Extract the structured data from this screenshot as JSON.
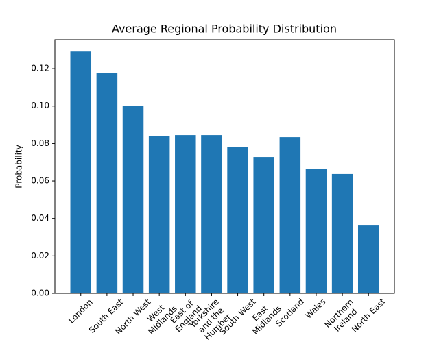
{
  "chart_data": {
    "type": "bar",
    "title": "Average Regional Probability Distribution",
    "y_label": "Probability",
    "categories": [
      "London",
      "South East",
      "North West",
      "West\nMidlands",
      "East of\nEngland",
      "Yorkshire\nand the\nHumber",
      "South West",
      "East\nMidlands",
      "Scotland",
      "Wales",
      "Northern\nIreland",
      "North East"
    ],
    "values": [
      0.1291,
      0.1178,
      0.1002,
      0.0838,
      0.0845,
      0.0845,
      0.0783,
      0.0728,
      0.0834,
      0.0666,
      0.0637,
      0.0362
    ],
    "color": "#1f77b4",
    "ylim": [
      0,
      0.1354
    ],
    "yticks": [
      {
        "value": 0,
        "label": "0.00"
      },
      0.02,
      0.04,
      0.06,
      0.08,
      {
        "value": 0.1,
        "label": "0.10"
      },
      0.12
    ]
  }
}
